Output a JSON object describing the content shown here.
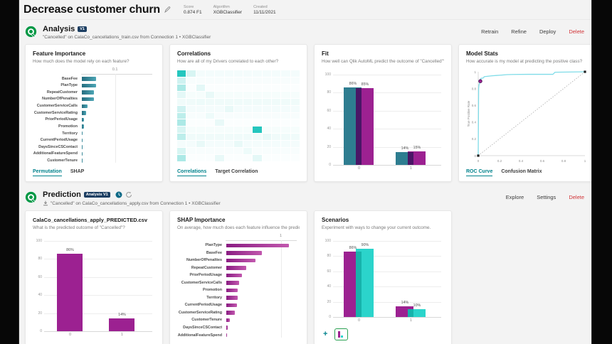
{
  "colors": {
    "teal_bar": "#2e7d90",
    "magenta_bar": "#9c2191",
    "cyan_bar": "#2bd4cb",
    "fit_overlap": "#4a1666",
    "scenario_overlap": "#17b3ab",
    "roc_line": "#7fdce8",
    "accent": "#00828c",
    "delete_red": "#d13438",
    "qlik_green": "#009845",
    "badge_navy": "#1c3e62",
    "heatmap_teal": "#24c6be",
    "teal_gradient": [
      "#256d7f",
      "#4da5b5"
    ],
    "magenta_gradient": [
      "#8a1c82",
      "#c258ae"
    ]
  },
  "header": {
    "title": "Decrease customer churn",
    "meta": [
      {
        "label": "Score",
        "value": "0.874 F1"
      },
      {
        "label": "Algorithm",
        "value": "XGBClassifier"
      },
      {
        "label": "Created",
        "value": "11/11/2021"
      }
    ]
  },
  "analysis": {
    "title": "Analysis",
    "badge": "V1",
    "subtitle": "\"Cancelled\" on CalaCo_cancellations_train.csv from Connection 1  •  XGBClassifier",
    "actions": [
      "Retrain",
      "Refine",
      "Deploy",
      "Delete"
    ]
  },
  "prediction": {
    "title": "Prediction",
    "badge": "Analysis V1",
    "subtitle": "\"Cancelled\" on CalaCo_cancellations_apply.csv from Connection 1  •  XGBClassifier",
    "actions": [
      "Explore",
      "Settings",
      "Delete"
    ]
  },
  "cards": [
    {
      "id": "feature-importance",
      "title": "Feature Importance",
      "subtitle": "How much does the model rely on each feature?",
      "tabs": [
        {
          "label": "Permutation",
          "active": true
        },
        {
          "label": "SHAP",
          "active": false
        }
      ]
    },
    {
      "id": "correlations",
      "title": "Correlations",
      "subtitle": "How are all of my Drivers correlated to each other?",
      "tabs": [
        {
          "label": "Correlations",
          "active": true
        },
        {
          "label": "Target Correlation",
          "active": false
        }
      ]
    },
    {
      "id": "fit",
      "title": "Fit",
      "subtitle": "How well can Qlik AutoML predict the outcome of \"Cancelled\"?",
      "tabs": []
    },
    {
      "id": "model-stats",
      "title": "Model Stats",
      "subtitle": "How accurate is my model at predicting the positive class?",
      "tabs": [
        {
          "label": "ROC Curve",
          "active": true
        },
        {
          "label": "Confusion Matrix",
          "active": false
        }
      ]
    },
    {
      "id": "predicted-csv",
      "title": "CalaCo_cancellations_apply_PREDICTED.csv",
      "subtitle": "What is the predicted outcome of \"Cancelled\"?",
      "tabs": []
    },
    {
      "id": "shap-importance",
      "title": "SHAP Importance",
      "subtitle": "On average, how much does each feature influence the prediction of \"Cancelled\"?",
      "tabs": []
    },
    {
      "id": "scenarios",
      "title": "Scenarios",
      "subtitle": "Experiment with ways to change your current outcome.",
      "tabs": [],
      "footer": {
        "add_label": "+"
      }
    }
  ],
  "chart_data": [
    {
      "id": "feature-importance",
      "type": "bar",
      "orientation": "horizontal",
      "categories": [
        "BaseFee",
        "PlanType",
        "RepeatCustomer",
        "NumberOfPenalties",
        "CustomerServiceCalls",
        "CustomerServiceRating",
        "PriorPeriodUsage",
        "Promotion",
        "Territory",
        "CurrentPeriodUsage",
        "DaysSinceCSContact",
        "AdditionalFeatureSpend",
        "CustomerTenure"
      ],
      "values": [
        0.042,
        0.041,
        0.036,
        0.035,
        0.016,
        0.012,
        0.007,
        0.007,
        0.002,
        0.001,
        0.0008,
        0.0005,
        0.0003
      ],
      "xlim": [
        0,
        0.21
      ],
      "ticks": [
        {
          "value": 0.1,
          "label": "0.1"
        }
      ],
      "bar_color_key": "teal_gradient"
    },
    {
      "id": "correlations",
      "type": "heatmap",
      "size": 13,
      "cells": [
        [
          0,
          0,
          1
        ],
        [
          0,
          1,
          0.18
        ],
        [
          1,
          0,
          0.22
        ],
        [
          2,
          0,
          0.38
        ],
        [
          3,
          0,
          0.12
        ],
        [
          5,
          0,
          0.22
        ],
        [
          6,
          0,
          0.3
        ],
        [
          7,
          0,
          0.38
        ],
        [
          8,
          0,
          0.18
        ],
        [
          9,
          0,
          0.3
        ],
        [
          11,
          0,
          0.18
        ],
        [
          12,
          0,
          0.38
        ],
        [
          8,
          8,
          1
        ],
        [
          2,
          2,
          0.12
        ],
        [
          3,
          3,
          0.1
        ],
        [
          5,
          5,
          0.1
        ],
        [
          7,
          4,
          0.1
        ],
        [
          9,
          9,
          0.1
        ],
        [
          10,
          6,
          0.1
        ],
        [
          12,
          8,
          0.12
        ],
        [
          6,
          3,
          0.08
        ],
        [
          4,
          2,
          0.08
        ],
        [
          11,
          7,
          0.08
        ],
        [
          10,
          2,
          0.1
        ],
        [
          12,
          4,
          0.1
        ]
      ],
      "base_color_key": "heatmap_teal"
    },
    {
      "id": "fit",
      "type": "bar",
      "orientation": "vertical",
      "grouped": true,
      "categories": [
        "0",
        "1"
      ],
      "series": [
        {
          "color_key": "teal_bar",
          "values": [
            86,
            14
          ],
          "labels": [
            "86%",
            "14%"
          ]
        },
        {
          "color_key": "magenta_bar",
          "values": [
            85,
            15
          ],
          "labels": [
            "85%",
            "15%"
          ]
        }
      ],
      "overlap_color_key": "fit_overlap",
      "ylim": [
        0,
        100
      ],
      "yticks": [
        0,
        20,
        40,
        60,
        80,
        100
      ]
    },
    {
      "id": "model-stats",
      "type": "line",
      "roc": true,
      "points": [
        [
          0,
          0
        ],
        [
          0.004,
          0.8
        ],
        [
          0.007,
          0.84
        ],
        [
          0.012,
          0.86
        ],
        [
          0.02,
          0.888
        ],
        [
          0.024,
          0.92
        ],
        [
          0.05,
          0.928
        ],
        [
          0.056,
          0.942
        ],
        [
          0.1,
          0.948
        ],
        [
          0.13,
          0.952
        ],
        [
          0.17,
          0.956
        ],
        [
          0.21,
          0.96
        ],
        [
          0.27,
          0.966
        ],
        [
          0.33,
          0.968
        ],
        [
          0.47,
          0.97
        ],
        [
          0.7,
          0.97
        ],
        [
          0.72,
          0.995
        ],
        [
          1,
          1
        ]
      ],
      "dot": [
        0.02,
        0.888
      ],
      "diagonal": true,
      "xticks": [
        0,
        0.2,
        0.4,
        0.6,
        0.8,
        1
      ],
      "yticks": [
        0,
        0.2,
        0.4,
        0.6,
        0.8,
        1
      ],
      "ylabel": "True Positive Rate"
    },
    {
      "id": "predicted-csv",
      "type": "bar",
      "orientation": "vertical",
      "grouped": false,
      "categories": [
        "0",
        "1"
      ],
      "series": [
        {
          "color_key": "magenta_bar",
          "values": [
            86,
            14
          ],
          "labels": [
            "86%",
            "14%"
          ]
        }
      ],
      "ylim": [
        0,
        100
      ],
      "yticks": [
        0,
        20,
        40,
        60,
        80,
        100
      ]
    },
    {
      "id": "shap-importance",
      "type": "bar",
      "orientation": "horizontal",
      "categories": [
        "PlanType",
        "BaseFee",
        "NumberOfPenalties",
        "RepeatCustomer",
        "PriorPeriodUsage",
        "CustomerServiceCalls",
        "Promotion",
        "Territory",
        "CurrentPeriodUsage",
        "CustomerServiceRating",
        "CustomerTenure",
        "DaysSinceCSContact",
        "AdditionalFeatureSpend"
      ],
      "values": [
        1.13,
        0.65,
        0.53,
        0.36,
        0.29,
        0.23,
        0.2,
        0.2,
        0.19,
        0.16,
        0.07,
        0.03,
        0.01
      ],
      "xlim": [
        0,
        1.29
      ],
      "ticks": [
        {
          "value": 1,
          "label": "1"
        }
      ],
      "bar_color_key": "magenta_gradient"
    },
    {
      "id": "scenarios",
      "type": "bar",
      "orientation": "vertical",
      "grouped": true,
      "categories": [
        "0",
        "1"
      ],
      "series": [
        {
          "color_key": "magenta_bar",
          "values": [
            86,
            14
          ],
          "labels": [
            "86%",
            "14%"
          ]
        },
        {
          "color_key": "cyan_bar",
          "values": [
            90,
            10
          ],
          "labels": [
            "90%",
            "10%"
          ]
        }
      ],
      "overlap_color_key": "scenario_overlap",
      "ylim": [
        0,
        100
      ],
      "yticks": [
        0,
        20,
        40,
        60,
        80,
        100
      ]
    }
  ]
}
